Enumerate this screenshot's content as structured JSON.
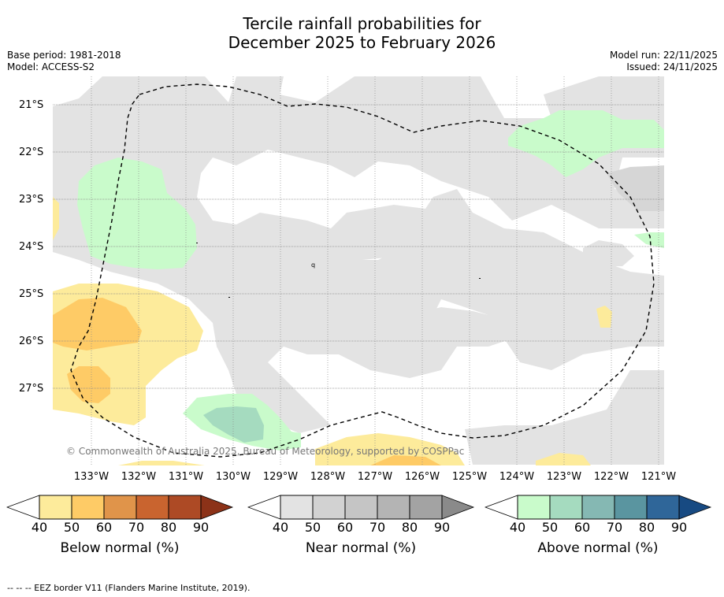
{
  "title": {
    "line1": "Tercile rainfall probabilities for",
    "line2": "December 2025 to February 2026"
  },
  "meta": {
    "base_period": "Base period: 1981-2018",
    "model": "Model: ACCESS-S2",
    "model_run": "Model run: 22/11/2025",
    "issued": "Issued: 24/11/2025"
  },
  "map": {
    "lat_labels": [
      "21°S",
      "22°S",
      "23°S",
      "24°S",
      "25°S",
      "26°S",
      "27°S"
    ],
    "lon_labels": [
      "133°W",
      "132°W",
      "131°W",
      "130°W",
      "129°W",
      "128°W",
      "127°W",
      "126°W",
      "125°W",
      "124°W",
      "123°W",
      "122°W",
      "121°W"
    ],
    "copyright": "© Commonwealth of Australia 2025, Bureau of Meteorology, supported by COSPPac"
  },
  "colorbars": [
    {
      "title": "Below normal (%)",
      "ticks": [
        "40",
        "50",
        "60",
        "70",
        "80",
        "90"
      ],
      "colors": [
        "#fdeb9b",
        "#fecb66",
        "#e0944a",
        "#c9642f",
        "#ad4a25",
        "#8c3218"
      ]
    },
    {
      "title": "Near normal (%)",
      "ticks": [
        "40",
        "50",
        "60",
        "70",
        "80",
        "90"
      ],
      "colors": [
        "#e3e3e3",
        "#d2d2d2",
        "#c5c5c5",
        "#b4b4b4",
        "#a3a3a3",
        "#8a8a8a"
      ]
    },
    {
      "title": "Above normal (%)",
      "ticks": [
        "40",
        "50",
        "60",
        "70",
        "80",
        "90"
      ],
      "colors": [
        "#c9fbcb",
        "#a5dbbf",
        "#85b8b3",
        "#5a95a0",
        "#2f6699",
        "#174a82"
      ]
    }
  ],
  "footnote": "--  --  -- EEZ border V11 (Flanders Marine Institute, 2019)."
}
